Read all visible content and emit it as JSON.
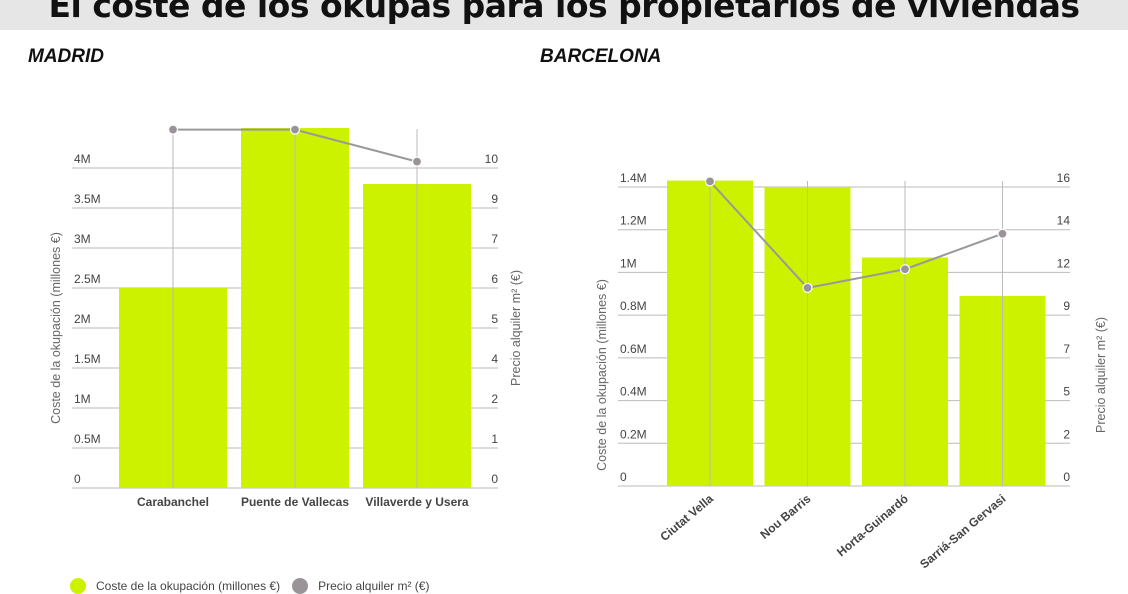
{
  "header": {
    "title": "El coste de los okupas para los propietarios de viviendas"
  },
  "colors": {
    "bar": "#ccf200",
    "line": "#999999",
    "dot": "#9a949a",
    "grid": "#bbbbbb",
    "header_bg": "#e6e6e6"
  },
  "legend": {
    "bar_label": "Coste de la okupación (millones €)",
    "line_label": "Precio alquiler m² (€)"
  },
  "madrid": {
    "title": "MADRID",
    "left_axis_title": "Coste de la okupación (millones €)",
    "right_axis_title": "Precio alquiler m² (€)",
    "left_ticks": [
      "0",
      "0.5M",
      "1M",
      "1.5M",
      "2M",
      "2.5M",
      "3M",
      "3.5M",
      "4M"
    ],
    "right_ticks": [
      "0",
      "1",
      "2",
      "4",
      "5",
      "6",
      "7",
      "9",
      "10"
    ],
    "categories": [
      "Carabanchel",
      "Puente de Vallecas",
      "Villaverde y Usera"
    ]
  },
  "barcelona": {
    "title": "BARCELONA",
    "left_axis_title": "Coste de la okupación (millones €)",
    "right_axis_title": "Precio alquiler m² (€)",
    "left_ticks": [
      "0",
      "0.2M",
      "0.4M",
      "0.6M",
      "0.8M",
      "1M",
      "1.2M",
      "1.4M"
    ],
    "right_ticks": [
      "0",
      "2",
      "5",
      "7",
      "9",
      "12",
      "14",
      "16"
    ],
    "categories": [
      "Ciutat Vella",
      "Nou Barris",
      "Horta-Guinardó",
      "Sarriá-San Gervasi"
    ]
  },
  "chart_data": [
    {
      "type": "bar",
      "title": "MADRID",
      "categories": [
        "Carabanchel",
        "Puente de Vallecas",
        "Villaverde y Usera"
      ],
      "series": [
        {
          "name": "Coste de la okupación (millones €)",
          "type": "bar",
          "axis": "left",
          "values": [
            2.5,
            4.5,
            3.8
          ]
        },
        {
          "name": "Precio alquiler m² (€)",
          "type": "line",
          "axis": "right",
          "values": [
            11.2,
            11.2,
            10.2
          ]
        }
      ],
      "ylabel": "Coste de la okupación (millones €)",
      "y2label": "Precio alquiler m² (€)",
      "ylim": [
        0,
        4.5
      ],
      "y2lim": [
        0,
        11.2
      ],
      "grid": true,
      "legend_position": "bottom"
    },
    {
      "type": "bar",
      "title": "BARCELONA",
      "categories": [
        "Ciutat Vella",
        "Nou Barris",
        "Horta-Guinardó",
        "Sarriá-San Gervasi"
      ],
      "series": [
        {
          "name": "Coste de la okupación (millones €)",
          "type": "bar",
          "axis": "left",
          "values": [
            1.43,
            1.4,
            1.07,
            0.89
          ]
        },
        {
          "name": "Precio alquiler m² (€)",
          "type": "line",
          "axis": "right",
          "values": [
            16.3,
            10.6,
            11.6,
            13.5
          ]
        }
      ],
      "ylabel": "Coste de la okupación (millones €)",
      "y2label": "Precio alquiler m² (€)",
      "ylim": [
        0,
        1.45
      ],
      "y2lim": [
        0,
        16.5
      ],
      "grid": true,
      "legend_position": "bottom"
    }
  ]
}
